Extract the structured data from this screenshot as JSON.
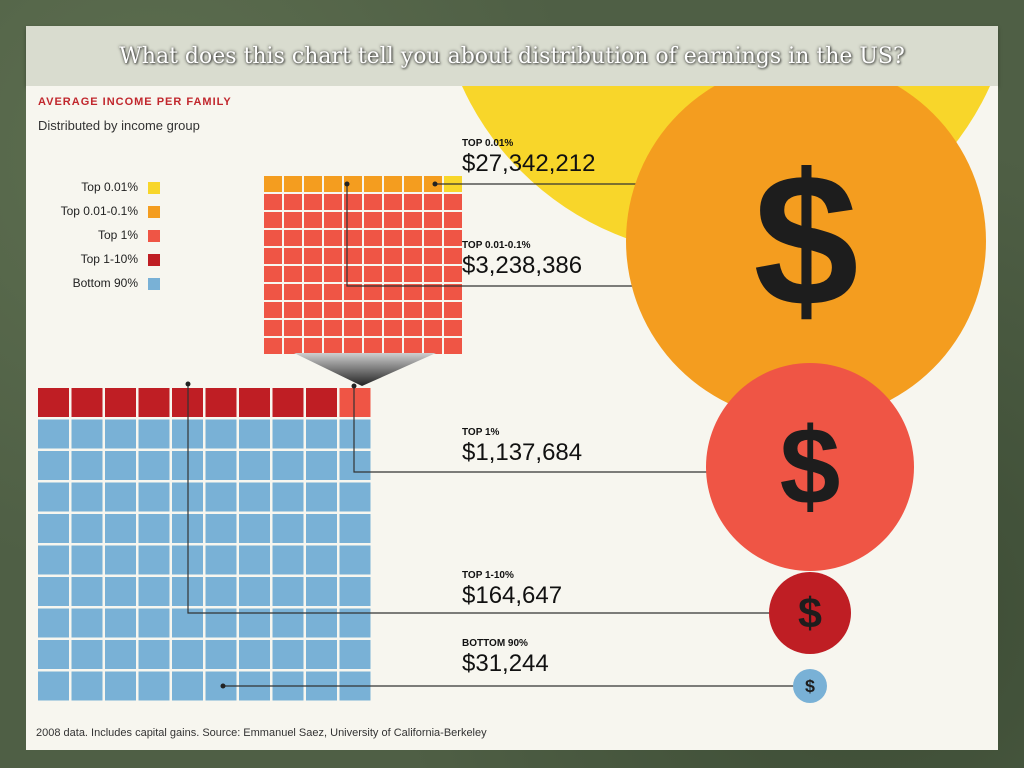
{
  "slide": {
    "title": "What does this chart tell you about distribution of earnings in the US?"
  },
  "colors": {
    "top_0_01": "#f8d62a",
    "top_0_01_0_1": "#f49d1f",
    "top_1": "#ef5545",
    "top_1_10": "#bf1e24",
    "bottom_90": "#79b1d6",
    "title_red": "#c1272d",
    "dollar": "#1d1d1d"
  },
  "chart_data": {
    "type": "waffle",
    "title": "AVERAGE INCOME PER FAMILY",
    "subtitle": "Distributed by income group",
    "source": "2008 data. Includes capital gains. Source: Emmanuel Saez, University of California-Berkeley",
    "legend": [
      {
        "label": "Top 0.01%",
        "color": "#f8d62a"
      },
      {
        "label": "Top 0.01-0.1%",
        "color": "#f49d1f"
      },
      {
        "label": "Top 1%",
        "color": "#ef5545"
      },
      {
        "label": "Top 1-10%",
        "color": "#bf1e24"
      },
      {
        "label": "Bottom 90%",
        "color": "#79b1d6"
      }
    ],
    "groups": [
      {
        "name": "Top 0.01%",
        "label": "TOP 0.01%",
        "income": 27342212,
        "income_text": "$27,342,212"
      },
      {
        "name": "Top 0.01-0.1%",
        "label": "TOP 0.01-0.1%",
        "income": 3238386,
        "income_text": "$3,238,386"
      },
      {
        "name": "Top 1%",
        "label": "TOP 1%",
        "income": 1137684,
        "income_text": "$1,137,684"
      },
      {
        "name": "Top 1-10%",
        "label": "TOP 1-10%",
        "income": 164647,
        "income_text": "$164,647"
      },
      {
        "name": "Bottom 90%",
        "label": "BOTTOM 90%",
        "income": 31244,
        "income_text": "$31,244"
      }
    ],
    "grid_main": {
      "rows": 10,
      "cols": 10,
      "counts": {
        "top_1_10": 9,
        "top_1": 1,
        "bottom_90": 90
      }
    },
    "grid_top1": {
      "rows": 10,
      "cols": 10,
      "counts": {
        "top_0_01": 1,
        "top_0_01_0_1": 9,
        "top_1": 90
      }
    },
    "dollar_symbol": "$"
  }
}
